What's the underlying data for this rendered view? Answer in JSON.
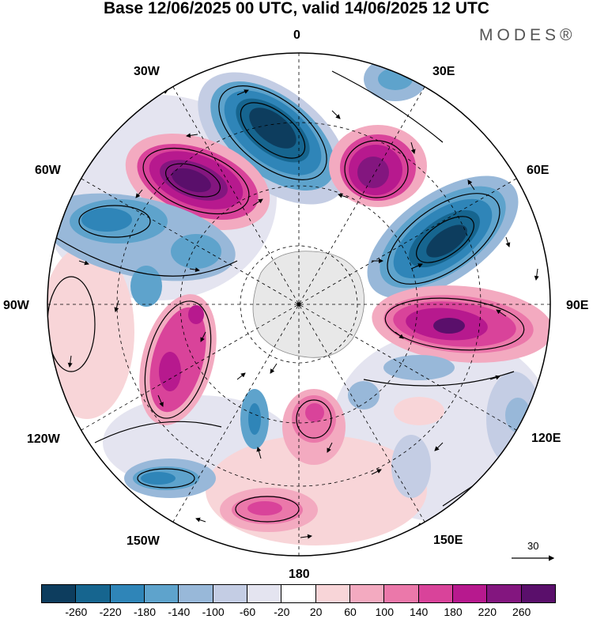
{
  "title": "Base 12/06/2025 00 UTC, valid 14/06/2025 12 UTC",
  "brand": "MODES®",
  "longitudes": {
    "top": "0",
    "top_right": "30E",
    "right_upper": "60E",
    "right": "90E",
    "right_lower": "120E",
    "bottom_right": "150E",
    "bottom": "180",
    "bottom_left": "150W",
    "left_lower": "120W",
    "left": "90W",
    "left_upper": "60W",
    "top_left": "30W"
  },
  "reference_vector": {
    "label": "30"
  },
  "colorbar": {
    "colors": [
      "#0d3d5e",
      "#16658f",
      "#2f85b8",
      "#5ea3cc",
      "#98b8d9",
      "#c4cde4",
      "#e4e4f0",
      "#ffffff",
      "#f8d5d8",
      "#f3aac0",
      "#eb78aa",
      "#d9439a",
      "#b7198e",
      "#83167f",
      "#5a0f6b"
    ],
    "ticks": [
      "-260",
      "-220",
      "-180",
      "-140",
      "-100",
      "-60",
      "-20",
      "20",
      "60",
      "100",
      "140",
      "180",
      "220",
      "260"
    ]
  }
}
